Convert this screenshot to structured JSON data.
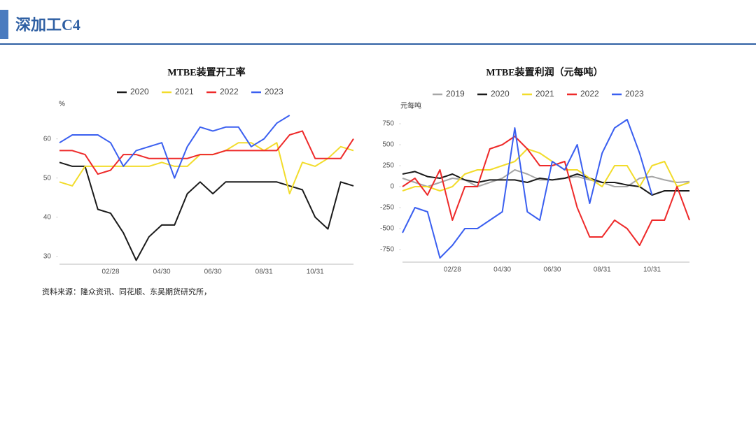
{
  "header": {
    "title": "深加工C4"
  },
  "source": "资料来源：隆众资讯、同花顺、东吴期货研究所，",
  "chart_data": [
    {
      "type": "line",
      "title": "MTBE装置开工率",
      "y_label": "%",
      "categories": [
        null,
        null,
        null,
        null,
        "02/28",
        null,
        null,
        null,
        "04/30",
        null,
        null,
        null,
        "06/30",
        null,
        null,
        null,
        "08/31",
        null,
        null,
        null,
        "10/31",
        null,
        null,
        null
      ],
      "ylim": [
        28,
        66
      ],
      "yticks": [
        30,
        40,
        50,
        60
      ],
      "series": [
        {
          "name": "2020",
          "color": "#1a1a1a",
          "values": [
            54,
            53,
            53,
            42,
            41,
            36,
            29,
            35,
            38,
            38,
            46,
            49,
            46,
            49,
            49,
            49,
            49,
            49,
            48,
            47,
            40,
            37,
            49,
            48
          ]
        },
        {
          "name": "2021",
          "color": "#f2dc2b",
          "values": [
            49,
            48,
            53,
            53,
            53,
            53,
            53,
            53,
            54,
            53,
            53,
            56,
            56,
            57,
            59,
            59,
            57,
            59,
            46,
            54,
            53,
            55,
            58,
            57
          ]
        },
        {
          "name": "2022",
          "color": "#ee2a2a",
          "values": [
            57,
            57,
            56,
            51,
            52,
            56,
            56,
            55,
            55,
            55,
            55,
            56,
            56,
            57,
            57,
            57,
            57,
            57,
            61,
            62,
            55,
            55,
            55,
            60
          ]
        },
        {
          "name": "2023",
          "color": "#3a5ff0",
          "values": [
            59,
            61,
            61,
            61,
            59,
            53,
            57,
            58,
            59,
            50,
            58,
            63,
            62,
            63,
            63,
            58,
            60,
            64,
            66,
            null,
            null,
            null,
            null,
            null
          ]
        }
      ]
    },
    {
      "type": "line",
      "title": "MTBE装置利润（元每吨）",
      "y_label": "元每吨",
      "categories": [
        null,
        null,
        null,
        null,
        "02/28",
        null,
        null,
        null,
        "04/30",
        null,
        null,
        null,
        "06/30",
        null,
        null,
        null,
        "08/31",
        null,
        null,
        null,
        "10/31",
        null,
        null,
        null
      ],
      "ylim": [
        -900,
        850
      ],
      "yticks": [
        750,
        500,
        250,
        0,
        -250,
        -500,
        -750
      ],
      "series": [
        {
          "name": "2019",
          "color": "#a6a6a6",
          "values": [
            100,
            50,
            0,
            50,
            100,
            80,
            0,
            50,
            100,
            200,
            150,
            80,
            80,
            100,
            120,
            80,
            50,
            0,
            0,
            100,
            120,
            80,
            50,
            60
          ]
        },
        {
          "name": "2020",
          "color": "#1a1a1a",
          "values": [
            150,
            180,
            120,
            100,
            150,
            80,
            50,
            80,
            80,
            80,
            50,
            100,
            80,
            100,
            150,
            100,
            50,
            50,
            20,
            0,
            -100,
            -50,
            -50,
            -50
          ]
        },
        {
          "name": "2021",
          "color": "#f2dc2b",
          "values": [
            -50,
            0,
            0,
            -50,
            0,
            150,
            200,
            200,
            250,
            300,
            450,
            400,
            300,
            200,
            200,
            100,
            0,
            250,
            250,
            0,
            250,
            300,
            0,
            50
          ]
        },
        {
          "name": "2022",
          "color": "#ee2a2a",
          "values": [
            0,
            100,
            -100,
            200,
            -400,
            0,
            0,
            450,
            500,
            600,
            450,
            250,
            250,
            300,
            -250,
            -600,
            -600,
            -400,
            -500,
            -700,
            -400,
            -400,
            0,
            -400
          ]
        },
        {
          "name": "2023",
          "color": "#3a5ff0",
          "values": [
            -550,
            -250,
            -300,
            -850,
            -700,
            -500,
            -500,
            -400,
            -300,
            700,
            -300,
            -400,
            300,
            200,
            500,
            -200,
            400,
            700,
            800,
            400,
            -100,
            null,
            null,
            null
          ]
        }
      ]
    }
  ]
}
